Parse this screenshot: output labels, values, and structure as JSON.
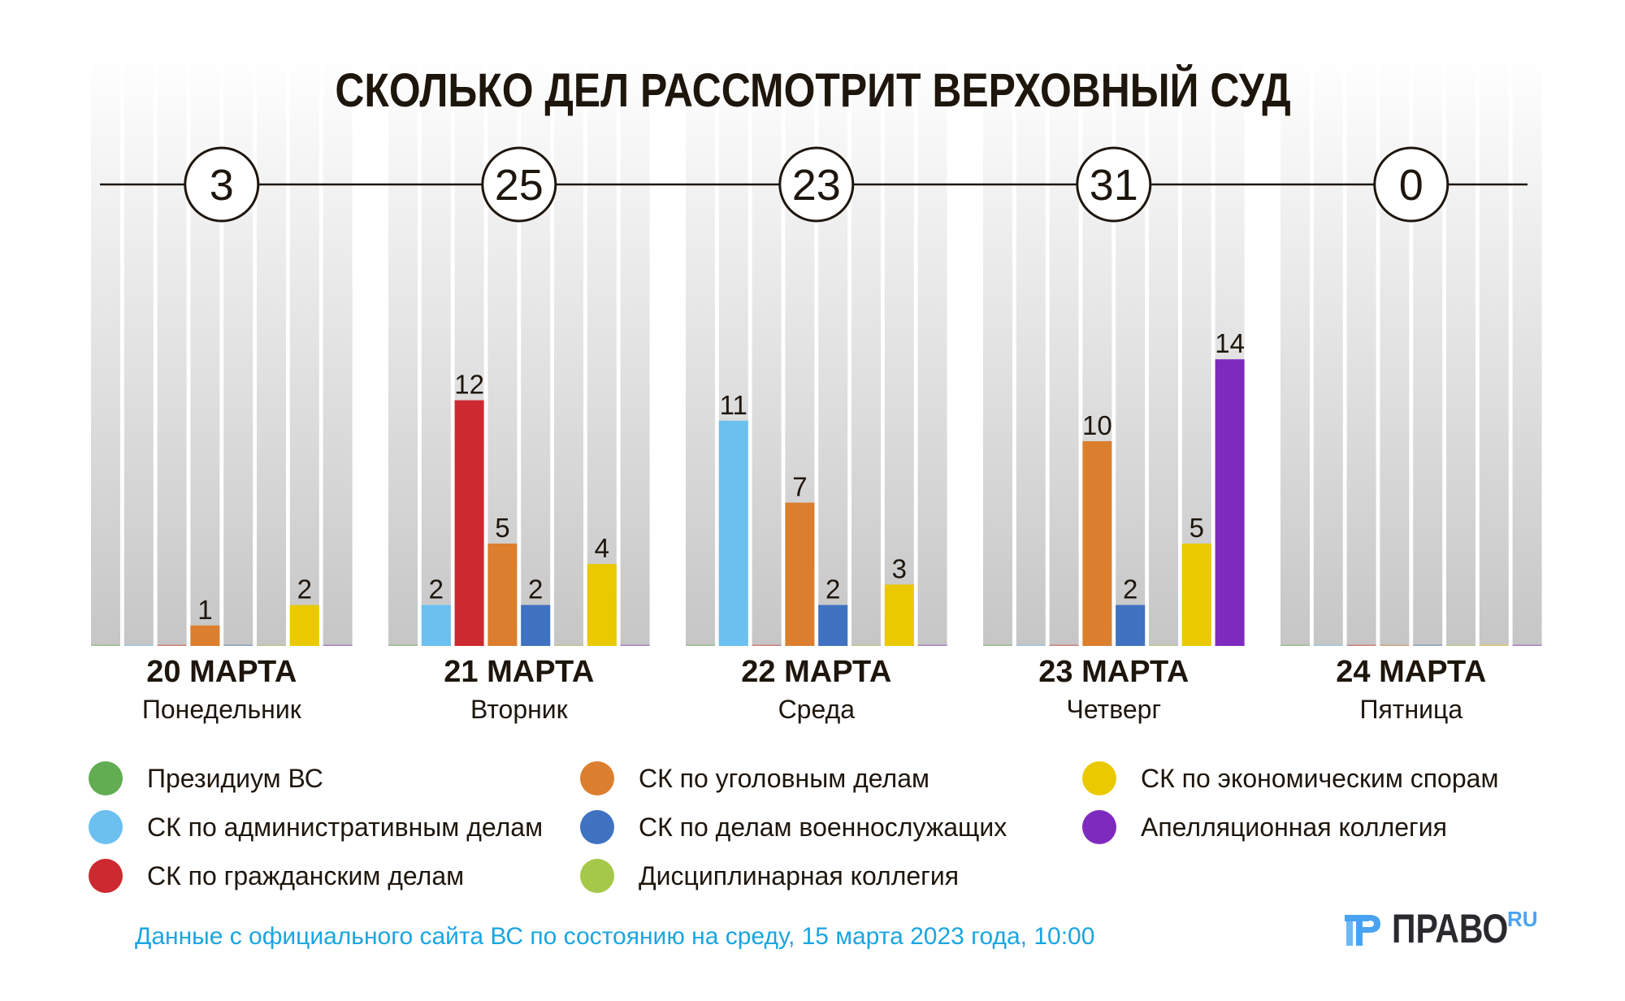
{
  "title": "СКОЛЬКО ДЕЛ РАССМОТРИТ ВЕРХОВНЫЙ СУД",
  "days": [
    {
      "date": "20 МАРТА",
      "weekday": "Понедельник",
      "total": "3"
    },
    {
      "date": "21 МАРТА",
      "weekday": "Вторник",
      "total": "25"
    },
    {
      "date": "22 МАРТА",
      "weekday": "Среда",
      "total": "23"
    },
    {
      "date": "23 МАРТА",
      "weekday": "Четверг",
      "total": "31"
    },
    {
      "date": "24 МАРТА",
      "weekday": "Пятница",
      "total": "0"
    }
  ],
  "legend": [
    {
      "label": "Президиум ВС",
      "color": "#62ad52"
    },
    {
      "label": "СК по административным делам",
      "color": "#6cc0f0"
    },
    {
      "label": "СК по гражданским делам",
      "color": "#cc2a30"
    },
    {
      "label": "СК по уголовным делам",
      "color": "#db7f2e"
    },
    {
      "label": "СК по делам военнослужащих",
      "color": "#3f72c0"
    },
    {
      "label": "Дисциплинарная коллегия",
      "color": "#a6c84a"
    },
    {
      "label": "СК по экономическим спорам",
      "color": "#eac900"
    },
    {
      "label": "Апелляционная коллегия",
      "color": "#7f2abf"
    }
  ],
  "footnote": "Данные с официального сайта ВС по состоянию на среду, 15 марта 2023 года, 10:00",
  "logo": {
    "word": "ПРАВО",
    "suffix": "RU",
    "mark_color": "#4aa3f0"
  },
  "chart_data": {
    "type": "bar",
    "title": "СКОЛЬКО ДЕЛ РАССМОТРИТ ВЕРХОВНЫЙ СУД",
    "categories": [
      "20 МАРТА",
      "21 МАРТА",
      "22 МАРТА",
      "23 МАРТА",
      "24 МАРТА"
    ],
    "category_sublabels": [
      "Понедельник",
      "Вторник",
      "Среда",
      "Четверг",
      "Пятница"
    ],
    "totals": [
      3,
      25,
      23,
      31,
      0
    ],
    "xlabel": "",
    "ylabel": "",
    "ylim": [
      0,
      14
    ],
    "grid": false,
    "legend_position": "bottom",
    "series": [
      {
        "name": "Президиум ВС",
        "color": "#62ad52",
        "values": [
          0,
          0,
          0,
          0,
          0
        ]
      },
      {
        "name": "СК по административным делам",
        "color": "#6cc0f0",
        "values": [
          0,
          2,
          11,
          0,
          0
        ]
      },
      {
        "name": "СК по гражданским делам",
        "color": "#cc2a30",
        "values": [
          0,
          12,
          0,
          0,
          0
        ]
      },
      {
        "name": "СК по уголовным делам",
        "color": "#db7f2e",
        "values": [
          1,
          5,
          7,
          10,
          0
        ]
      },
      {
        "name": "СК по делам военнослужащих",
        "color": "#3f72c0",
        "values": [
          0,
          2,
          2,
          2,
          0
        ]
      },
      {
        "name": "Дисциплинарная коллегия",
        "color": "#a6c84a",
        "values": [
          0,
          0,
          0,
          0,
          0
        ]
      },
      {
        "name": "СК по экономическим спорам",
        "color": "#eac900",
        "values": [
          2,
          4,
          3,
          5,
          0
        ]
      },
      {
        "name": "Апелляционная коллегия",
        "color": "#7f2abf",
        "values": [
          0,
          0,
          0,
          14,
          0
        ]
      }
    ]
  }
}
